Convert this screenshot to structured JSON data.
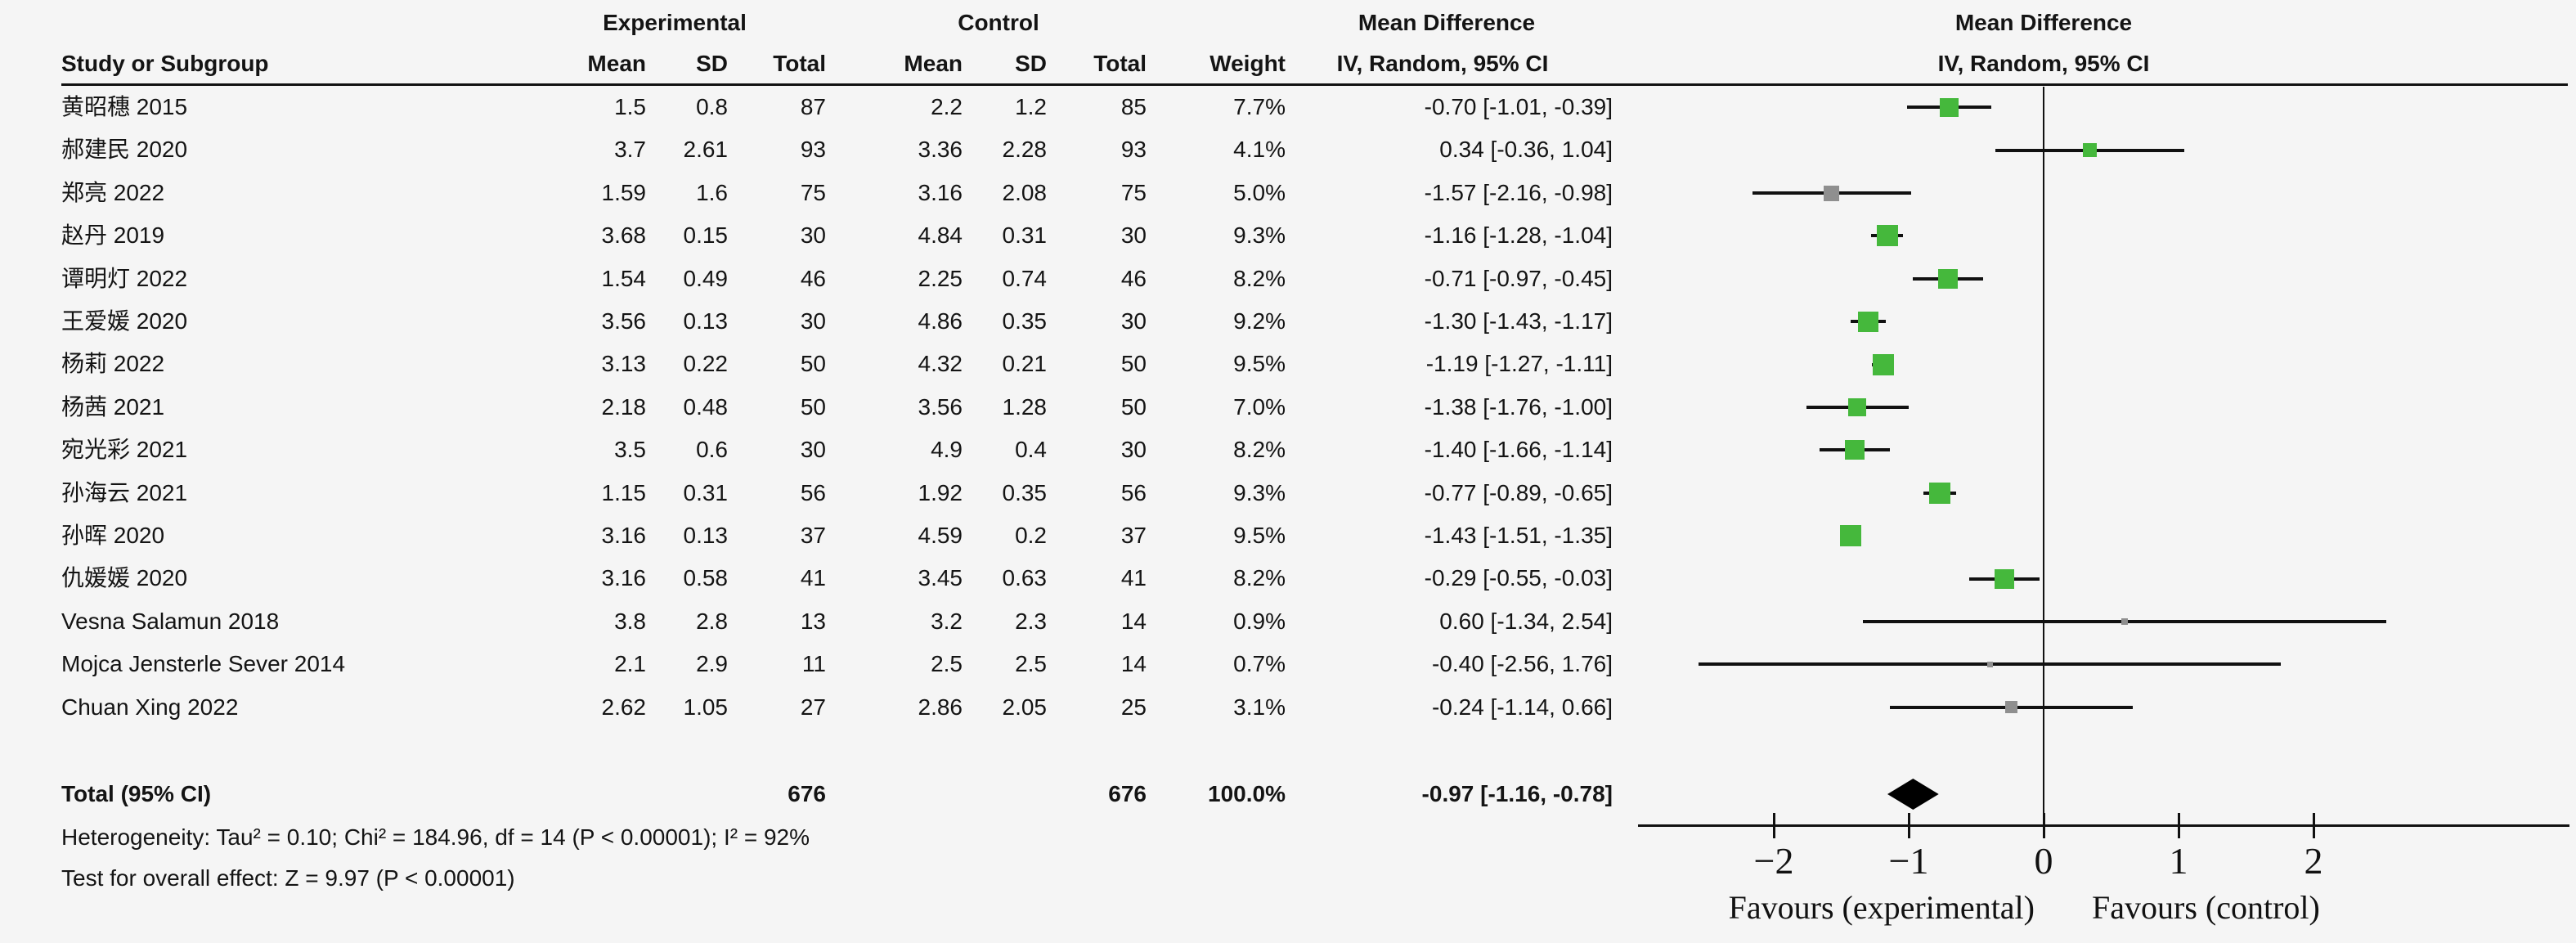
{
  "colors": {
    "background": "#f5f5f5",
    "text": "#141414",
    "line": "#111111",
    "marker_green": "#45b83c",
    "marker_gray": "#8f8f8f",
    "diamond": "#000000"
  },
  "header": {
    "group_experimental": "Experimental",
    "group_control": "Control",
    "md_table": "Mean Difference",
    "md_plot": "Mean Difference",
    "study_col": "Study or Subgroup",
    "mean": "Mean",
    "sd": "SD",
    "total": "Total",
    "weight": "Weight",
    "ci_label": "IV, Random, 95% CI"
  },
  "studies": [
    {
      "name": "黄昭穗 2015",
      "exp_mean": "1.5",
      "exp_sd": "0.8",
      "exp_total": "87",
      "ctrl_mean": "2.2",
      "ctrl_sd": "1.2",
      "ctrl_total": "85",
      "weight": "7.7%",
      "md": "-0.70 [-1.01, -0.39]",
      "est": -0.7,
      "lo": -1.01,
      "hi": -0.39,
      "w": 7.7,
      "marker": "green"
    },
    {
      "name": "郝建民 2020",
      "exp_mean": "3.7",
      "exp_sd": "2.61",
      "exp_total": "93",
      "ctrl_mean": "3.36",
      "ctrl_sd": "2.28",
      "ctrl_total": "93",
      "weight": "4.1%",
      "md": "0.34 [-0.36, 1.04]",
      "est": 0.34,
      "lo": -0.36,
      "hi": 1.04,
      "w": 4.1,
      "marker": "green"
    },
    {
      "name": "郑亮 2022",
      "exp_mean": "1.59",
      "exp_sd": "1.6",
      "exp_total": "75",
      "ctrl_mean": "3.16",
      "ctrl_sd": "2.08",
      "ctrl_total": "75",
      "weight": "5.0%",
      "md": "-1.57 [-2.16, -0.98]",
      "est": -1.57,
      "lo": -2.16,
      "hi": -0.98,
      "w": 5.0,
      "marker": "gray"
    },
    {
      "name": "赵丹 2019",
      "exp_mean": "3.68",
      "exp_sd": "0.15",
      "exp_total": "30",
      "ctrl_mean": "4.84",
      "ctrl_sd": "0.31",
      "ctrl_total": "30",
      "weight": "9.3%",
      "md": "-1.16 [-1.28, -1.04]",
      "est": -1.16,
      "lo": -1.28,
      "hi": -1.04,
      "w": 9.3,
      "marker": "green"
    },
    {
      "name": "谭明灯 2022",
      "exp_mean": "1.54",
      "exp_sd": "0.49",
      "exp_total": "46",
      "ctrl_mean": "2.25",
      "ctrl_sd": "0.74",
      "ctrl_total": "46",
      "weight": "8.2%",
      "md": "-0.71 [-0.97, -0.45]",
      "est": -0.71,
      "lo": -0.97,
      "hi": -0.45,
      "w": 8.2,
      "marker": "green"
    },
    {
      "name": "王爱媛 2020",
      "exp_mean": "3.56",
      "exp_sd": "0.13",
      "exp_total": "30",
      "ctrl_mean": "4.86",
      "ctrl_sd": "0.35",
      "ctrl_total": "30",
      "weight": "9.2%",
      "md": "-1.30 [-1.43, -1.17]",
      "est": -1.3,
      "lo": -1.43,
      "hi": -1.17,
      "w": 9.2,
      "marker": "green"
    },
    {
      "name": "杨莉 2022",
      "exp_mean": "3.13",
      "exp_sd": "0.22",
      "exp_total": "50",
      "ctrl_mean": "4.32",
      "ctrl_sd": "0.21",
      "ctrl_total": "50",
      "weight": "9.5%",
      "md": "-1.19 [-1.27, -1.11]",
      "est": -1.19,
      "lo": -1.27,
      "hi": -1.11,
      "w": 9.5,
      "marker": "green"
    },
    {
      "name": "杨茜 2021",
      "exp_mean": "2.18",
      "exp_sd": "0.48",
      "exp_total": "50",
      "ctrl_mean": "3.56",
      "ctrl_sd": "1.28",
      "ctrl_total": "50",
      "weight": "7.0%",
      "md": "-1.38 [-1.76, -1.00]",
      "est": -1.38,
      "lo": -1.76,
      "hi": -1.0,
      "w": 7.0,
      "marker": "green"
    },
    {
      "name": "宛光彩 2021",
      "exp_mean": "3.5",
      "exp_sd": "0.6",
      "exp_total": "30",
      "ctrl_mean": "4.9",
      "ctrl_sd": "0.4",
      "ctrl_total": "30",
      "weight": "8.2%",
      "md": "-1.40 [-1.66, -1.14]",
      "est": -1.4,
      "lo": -1.66,
      "hi": -1.14,
      "w": 8.2,
      "marker": "green"
    },
    {
      "name": "孙海云 2021",
      "exp_mean": "1.15",
      "exp_sd": "0.31",
      "exp_total": "56",
      "ctrl_mean": "1.92",
      "ctrl_sd": "0.35",
      "ctrl_total": "56",
      "weight": "9.3%",
      "md": "-0.77 [-0.89, -0.65]",
      "est": -0.77,
      "lo": -0.89,
      "hi": -0.65,
      "w": 9.3,
      "marker": "green"
    },
    {
      "name": "孙晖 2020",
      "exp_mean": "3.16",
      "exp_sd": "0.13",
      "exp_total": "37",
      "ctrl_mean": "4.59",
      "ctrl_sd": "0.2",
      "ctrl_total": "37",
      "weight": "9.5%",
      "md": "-1.43 [-1.51, -1.35]",
      "est": -1.43,
      "lo": -1.51,
      "hi": -1.35,
      "w": 9.5,
      "marker": "green"
    },
    {
      "name": "仇媛媛 2020",
      "exp_mean": "3.16",
      "exp_sd": "0.58",
      "exp_total": "41",
      "ctrl_mean": "3.45",
      "ctrl_sd": "0.63",
      "ctrl_total": "41",
      "weight": "8.2%",
      "md": "-0.29 [-0.55, -0.03]",
      "est": -0.29,
      "lo": -0.55,
      "hi": -0.03,
      "w": 8.2,
      "marker": "green"
    },
    {
      "name": "Vesna Salamun 2018",
      "exp_mean": "3.8",
      "exp_sd": "2.8",
      "exp_total": "13",
      "ctrl_mean": "3.2",
      "ctrl_sd": "2.3",
      "ctrl_total": "14",
      "weight": "0.9%",
      "md": "0.60 [-1.34, 2.54]",
      "est": 0.6,
      "lo": -1.34,
      "hi": 2.54,
      "w": 0.9,
      "marker": "gray"
    },
    {
      "name": "Mojca Jensterle Sever 2014",
      "exp_mean": "2.1",
      "exp_sd": "2.9",
      "exp_total": "11",
      "ctrl_mean": "2.5",
      "ctrl_sd": "2.5",
      "ctrl_total": "14",
      "weight": "0.7%",
      "md": "-0.40 [-2.56, 1.76]",
      "est": -0.4,
      "lo": -2.56,
      "hi": 1.76,
      "w": 0.7,
      "marker": "gray"
    },
    {
      "name": "Chuan Xing 2022",
      "exp_mean": "2.62",
      "exp_sd": "1.05",
      "exp_total": "27",
      "ctrl_mean": "2.86",
      "ctrl_sd": "2.05",
      "ctrl_total": "25",
      "weight": "3.1%",
      "md": "-0.24 [-1.14, 0.66]",
      "est": -0.24,
      "lo": -1.14,
      "hi": 0.66,
      "w": 3.1,
      "marker": "gray"
    }
  ],
  "totals": {
    "label": "Total (95% CI)",
    "exp_total": "676",
    "ctrl_total": "676",
    "weight": "100.0%",
    "md": "-0.97 [-1.16, -0.78]",
    "est": -0.97,
    "lo": -1.16,
    "hi": -0.78
  },
  "footnotes": {
    "heterogeneity": "Heterogeneity: Tau² = 0.10; Chi² = 184.96, df = 14 (P < 0.00001); I² = 92%",
    "overall_effect": "Test for overall effect: Z = 9.97 (P < 0.00001)"
  },
  "axis": {
    "ticks": [
      -2,
      -1,
      0,
      1,
      2
    ],
    "tick_labels": [
      "−2",
      "−1",
      "0",
      "1",
      "2"
    ],
    "favours_left": "Favours (experimental)",
    "favours_right": "Favours (control)"
  },
  "chart_data": {
    "type": "scatter",
    "subtype": "forest-plot",
    "title": "Mean Difference, IV, Random, 95% CI",
    "categories": [
      "黄昭穗 2015",
      "郝建民 2020",
      "郑亮 2022",
      "赵丹 2019",
      "谭明灯 2022",
      "王爱媛 2020",
      "杨莉 2022",
      "杨茜 2021",
      "宛光彩 2021",
      "孙海云 2021",
      "孙晖 2020",
      "仇媛媛 2020",
      "Vesna Salamun 2018",
      "Mojca Jensterle Sever 2014",
      "Chuan Xing 2022"
    ],
    "series": [
      {
        "name": "Mean Difference (point estimate)",
        "values": [
          -0.7,
          0.34,
          -1.57,
          -1.16,
          -0.71,
          -1.3,
          -1.19,
          -1.38,
          -1.4,
          -0.77,
          -1.43,
          -0.29,
          0.6,
          -0.4,
          -0.24
        ]
      },
      {
        "name": "CI lower",
        "values": [
          -1.01,
          -0.36,
          -2.16,
          -1.28,
          -0.97,
          -1.43,
          -1.27,
          -1.76,
          -1.66,
          -0.89,
          -1.51,
          -0.55,
          -1.34,
          -2.56,
          -1.14
        ]
      },
      {
        "name": "CI upper",
        "values": [
          -0.39,
          1.04,
          -0.98,
          -1.04,
          -0.45,
          -1.17,
          -1.11,
          -1.0,
          -1.14,
          -0.65,
          -1.35,
          -0.03,
          2.54,
          1.76,
          0.66
        ]
      },
      {
        "name": "Weight %",
        "values": [
          7.7,
          4.1,
          5.0,
          9.3,
          8.2,
          9.2,
          9.5,
          7.0,
          8.2,
          9.3,
          9.5,
          8.2,
          0.9,
          0.7,
          3.1
        ]
      }
    ],
    "total": {
      "label": "Total (95% CI)",
      "estimate": -0.97,
      "ci": [
        -1.16,
        -0.78
      ],
      "weight": 100.0
    },
    "xlabel_left": "Favours (experimental)",
    "xlabel_right": "Favours (control)",
    "xlim_ticks": [
      -2,
      2
    ],
    "x_tick_step": 1,
    "grid": false,
    "legend": false
  }
}
